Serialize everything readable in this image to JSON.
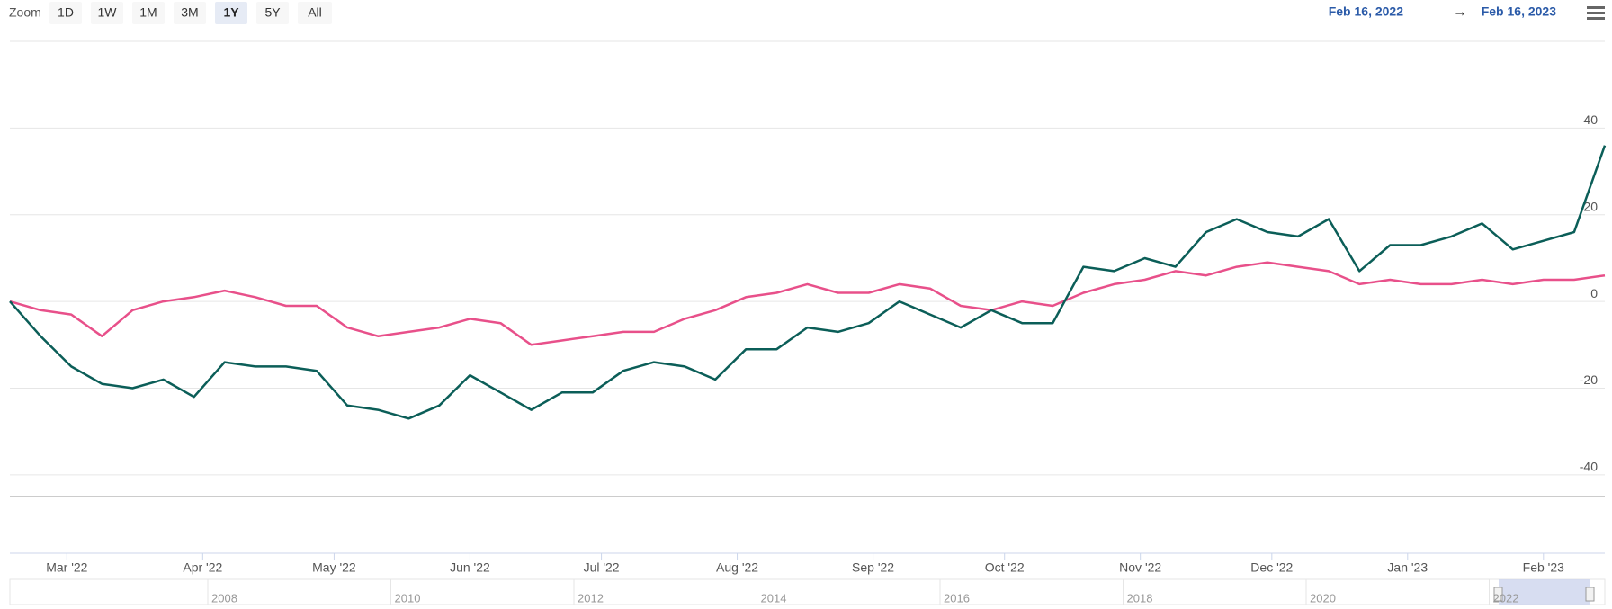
{
  "range_selector": {
    "zoom_label": "Zoom",
    "buttons": [
      "1D",
      "1W",
      "1M",
      "3M",
      "1Y",
      "5Y",
      "All"
    ],
    "active": "1Y",
    "from": "Feb 16, 2022",
    "arrow": "→",
    "to": "Feb 16, 2023"
  },
  "navigator": {
    "labels": [
      "2008",
      "2010",
      "2012",
      "2014",
      "2016",
      "2018",
      "2020",
      "2022"
    ]
  },
  "chart_data": {
    "type": "line",
    "categories": [
      null,
      null,
      null,
      null,
      null,
      null,
      null,
      null,
      null,
      null,
      null,
      null,
      null,
      null,
      null,
      null,
      null,
      null,
      null,
      null,
      null,
      null,
      null,
      null,
      null,
      null,
      null,
      null,
      null,
      null,
      null,
      null,
      null,
      null,
      null,
      null,
      null,
      null,
      null,
      null,
      null,
      null,
      null,
      null,
      null,
      null,
      null,
      null,
      null,
      null,
      null,
      null,
      null
    ],
    "series": [
      {
        "color": "#0b5e58",
        "values": [
          0,
          -8,
          -15,
          -19,
          -20,
          -18,
          -22,
          -14,
          -15,
          -15,
          -16,
          -24,
          -25,
          -27,
          -24,
          -17,
          -21,
          -25,
          -21,
          -21,
          -16,
          -14,
          -15,
          -18,
          -11,
          -11,
          -6,
          -7,
          -5,
          0,
          -3,
          -6,
          -2,
          -5,
          -5,
          8,
          7,
          10,
          8,
          16,
          19,
          16,
          15,
          19,
          7,
          13,
          13,
          15,
          18,
          12,
          14,
          16,
          36
        ]
      },
      {
        "color": "#e8508a",
        "values": [
          0,
          -2,
          -3,
          -8,
          -2,
          0,
          1,
          2.5,
          1,
          -1,
          -1,
          -6,
          -8,
          -7,
          -6,
          -4,
          -5,
          -10,
          -9,
          -8,
          -7,
          -7,
          -4,
          -2,
          1,
          2,
          4,
          2,
          2,
          4,
          3,
          -1,
          -2,
          0,
          -1,
          2,
          4,
          5,
          7,
          6,
          8,
          9,
          8,
          7,
          4,
          5,
          4,
          4,
          5,
          4,
          5,
          5,
          6
        ]
      }
    ],
    "ylim": [
      -45,
      60
    ],
    "yticks": [
      -40,
      -20,
      0,
      20,
      40
    ],
    "grid": true,
    "xticks": [
      {
        "value": 1.857,
        "label": "Mar '22"
      },
      {
        "value": 6.286,
        "label": "Apr '22"
      },
      {
        "value": 10.571,
        "label": "May '22"
      },
      {
        "value": 15,
        "label": "Jun '22"
      },
      {
        "value": 19.286,
        "label": "Jul '22"
      },
      {
        "value": 23.714,
        "label": "Aug '22"
      },
      {
        "value": 28.143,
        "label": "Sep '22"
      },
      {
        "value": 32.429,
        "label": "Oct '22"
      },
      {
        "value": 36.857,
        "label": "Nov '22"
      },
      {
        "value": 41.143,
        "label": "Dec '22"
      },
      {
        "value": 45.571,
        "label": "Jan '23"
      },
      {
        "value": 50,
        "label": "Feb '23"
      }
    ]
  }
}
